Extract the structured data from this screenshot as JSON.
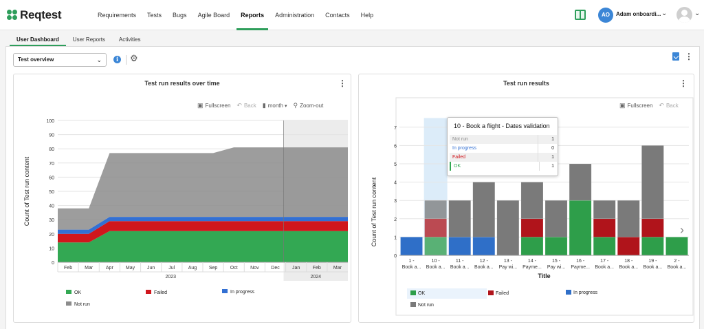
{
  "app": {
    "logo": "Reqtest"
  },
  "nav": {
    "items": [
      "Requirements",
      "Tests",
      "Bugs",
      "Agile Board",
      "Reports",
      "Administration",
      "Contacts",
      "Help"
    ],
    "active": "Reports"
  },
  "user": {
    "initials": "AO",
    "name": "Adam onboardi..."
  },
  "subtabs": [
    "User Dashboard",
    "User Reports",
    "Activities"
  ],
  "dashboard": {
    "selected": "Test overview"
  },
  "icons": {
    "logo": "clover-icon",
    "guide": "book-icon",
    "user_menu": "chevron-down-icon",
    "profile": "user-icon",
    "info": "info-icon",
    "settings": "gear-icon",
    "export": "export-icon",
    "menu": "kebab-icon",
    "fullscreen": "fullscreen-icon",
    "back": "back-icon",
    "period": "bar-chart-icon",
    "zoom": "zoom-out-icon",
    "next": "chevron-right-icon"
  },
  "colors": {
    "accent": "#2e9e5b",
    "ok": "#33a853",
    "failed": "#d0161d",
    "in_progress": "#3370d3",
    "not_run": "#8c8c8c"
  },
  "left_panel": {
    "title": "Test run results over time",
    "toolbar": {
      "fullscreen": "Fullscreen",
      "back": "Back",
      "period": "month",
      "zoom": "Zoom-out"
    }
  },
  "right_panel": {
    "title": "Test run results",
    "toolbar": {
      "fullscreen": "Fullscreen",
      "back": "Back"
    }
  },
  "tooltip": {
    "title": "10 - Book a flight - Dates validation",
    "rows": [
      {
        "label": "Not run",
        "value": "1"
      },
      {
        "label": "In progress",
        "value": "0"
      },
      {
        "label": "Failed",
        "value": "1"
      },
      {
        "label": "OK",
        "value": "1"
      }
    ]
  },
  "chart_data": [
    {
      "type": "area",
      "title": "Test run results over time",
      "ylabel": "Count of Test run content",
      "xlabel": "",
      "ylim": [
        0,
        100
      ],
      "yticks": [
        0,
        10,
        20,
        30,
        40,
        50,
        60,
        70,
        80,
        90,
        100
      ],
      "x": [
        "Feb",
        "Mar",
        "Apr",
        "May",
        "Jun",
        "Jul",
        "Aug",
        "Sep",
        "Oct",
        "Nov",
        "Dec",
        "Jan",
        "Feb",
        "Mar"
      ],
      "year_labels": [
        "2023",
        "2024"
      ],
      "stacked": true,
      "series": [
        {
          "name": "OK",
          "values": [
            14,
            14,
            22,
            22,
            22,
            22,
            22,
            22,
            22,
            22,
            22,
            22,
            22,
            22
          ]
        },
        {
          "name": "Failed",
          "values": [
            6,
            6,
            7,
            7,
            7,
            7,
            7,
            7,
            7,
            7,
            7,
            7,
            7,
            7
          ]
        },
        {
          "name": "In progress",
          "values": [
            3,
            3,
            3,
            3,
            3,
            3,
            3,
            3,
            3,
            3,
            3,
            3,
            3,
            3
          ]
        },
        {
          "name": "Not run",
          "values": [
            15,
            15,
            45,
            45,
            45,
            45,
            45,
            45,
            49,
            49,
            49,
            49,
            49,
            49
          ]
        }
      ],
      "legend": {
        "position": "bottom",
        "entries": [
          "OK",
          "Failed",
          "In progress",
          "Not run"
        ]
      },
      "grid": true
    },
    {
      "type": "bar",
      "title": "Test run results",
      "ylabel": "Count of Test run content",
      "xlabel": "Title",
      "ylim": [
        0,
        7.5
      ],
      "yticks": [
        0,
        1,
        2,
        3,
        4,
        5,
        6,
        7
      ],
      "stacked": true,
      "categories": [
        [
          "1 -",
          "Book a..."
        ],
        [
          "10 -",
          "Book a..."
        ],
        [
          "11 -",
          "Book a..."
        ],
        [
          "12 -",
          "Book a..."
        ],
        [
          "13 -",
          "Pay wi..."
        ],
        [
          "14 -",
          "Payme..."
        ],
        [
          "15 -",
          "Pay wi..."
        ],
        [
          "16 -",
          "Payme..."
        ],
        [
          "17 -",
          "Book a..."
        ],
        [
          "18 -",
          "Book a..."
        ],
        [
          "19 -",
          "Book a..."
        ],
        [
          "2 -",
          "Book a..."
        ]
      ],
      "series": [
        {
          "name": "OK",
          "values": [
            0,
            1,
            0,
            0,
            0,
            1,
            1,
            3,
            1,
            0,
            1,
            1
          ]
        },
        {
          "name": "In progress",
          "values": [
            1,
            0,
            1,
            1,
            0,
            0,
            0,
            0,
            0,
            0,
            0,
            0
          ]
        },
        {
          "name": "Failed",
          "values": [
            0,
            1,
            0,
            0,
            0,
            1,
            0,
            0,
            1,
            1,
            1,
            0
          ]
        },
        {
          "name": "Not run",
          "values": [
            0,
            1,
            2,
            3,
            3,
            2,
            2,
            2,
            1,
            2,
            4,
            0
          ]
        }
      ],
      "highlighted_category": 1,
      "legend": {
        "position": "bottom",
        "entries": [
          "OK",
          "Failed",
          "In progress",
          "Not run"
        ]
      },
      "grid": true
    }
  ]
}
